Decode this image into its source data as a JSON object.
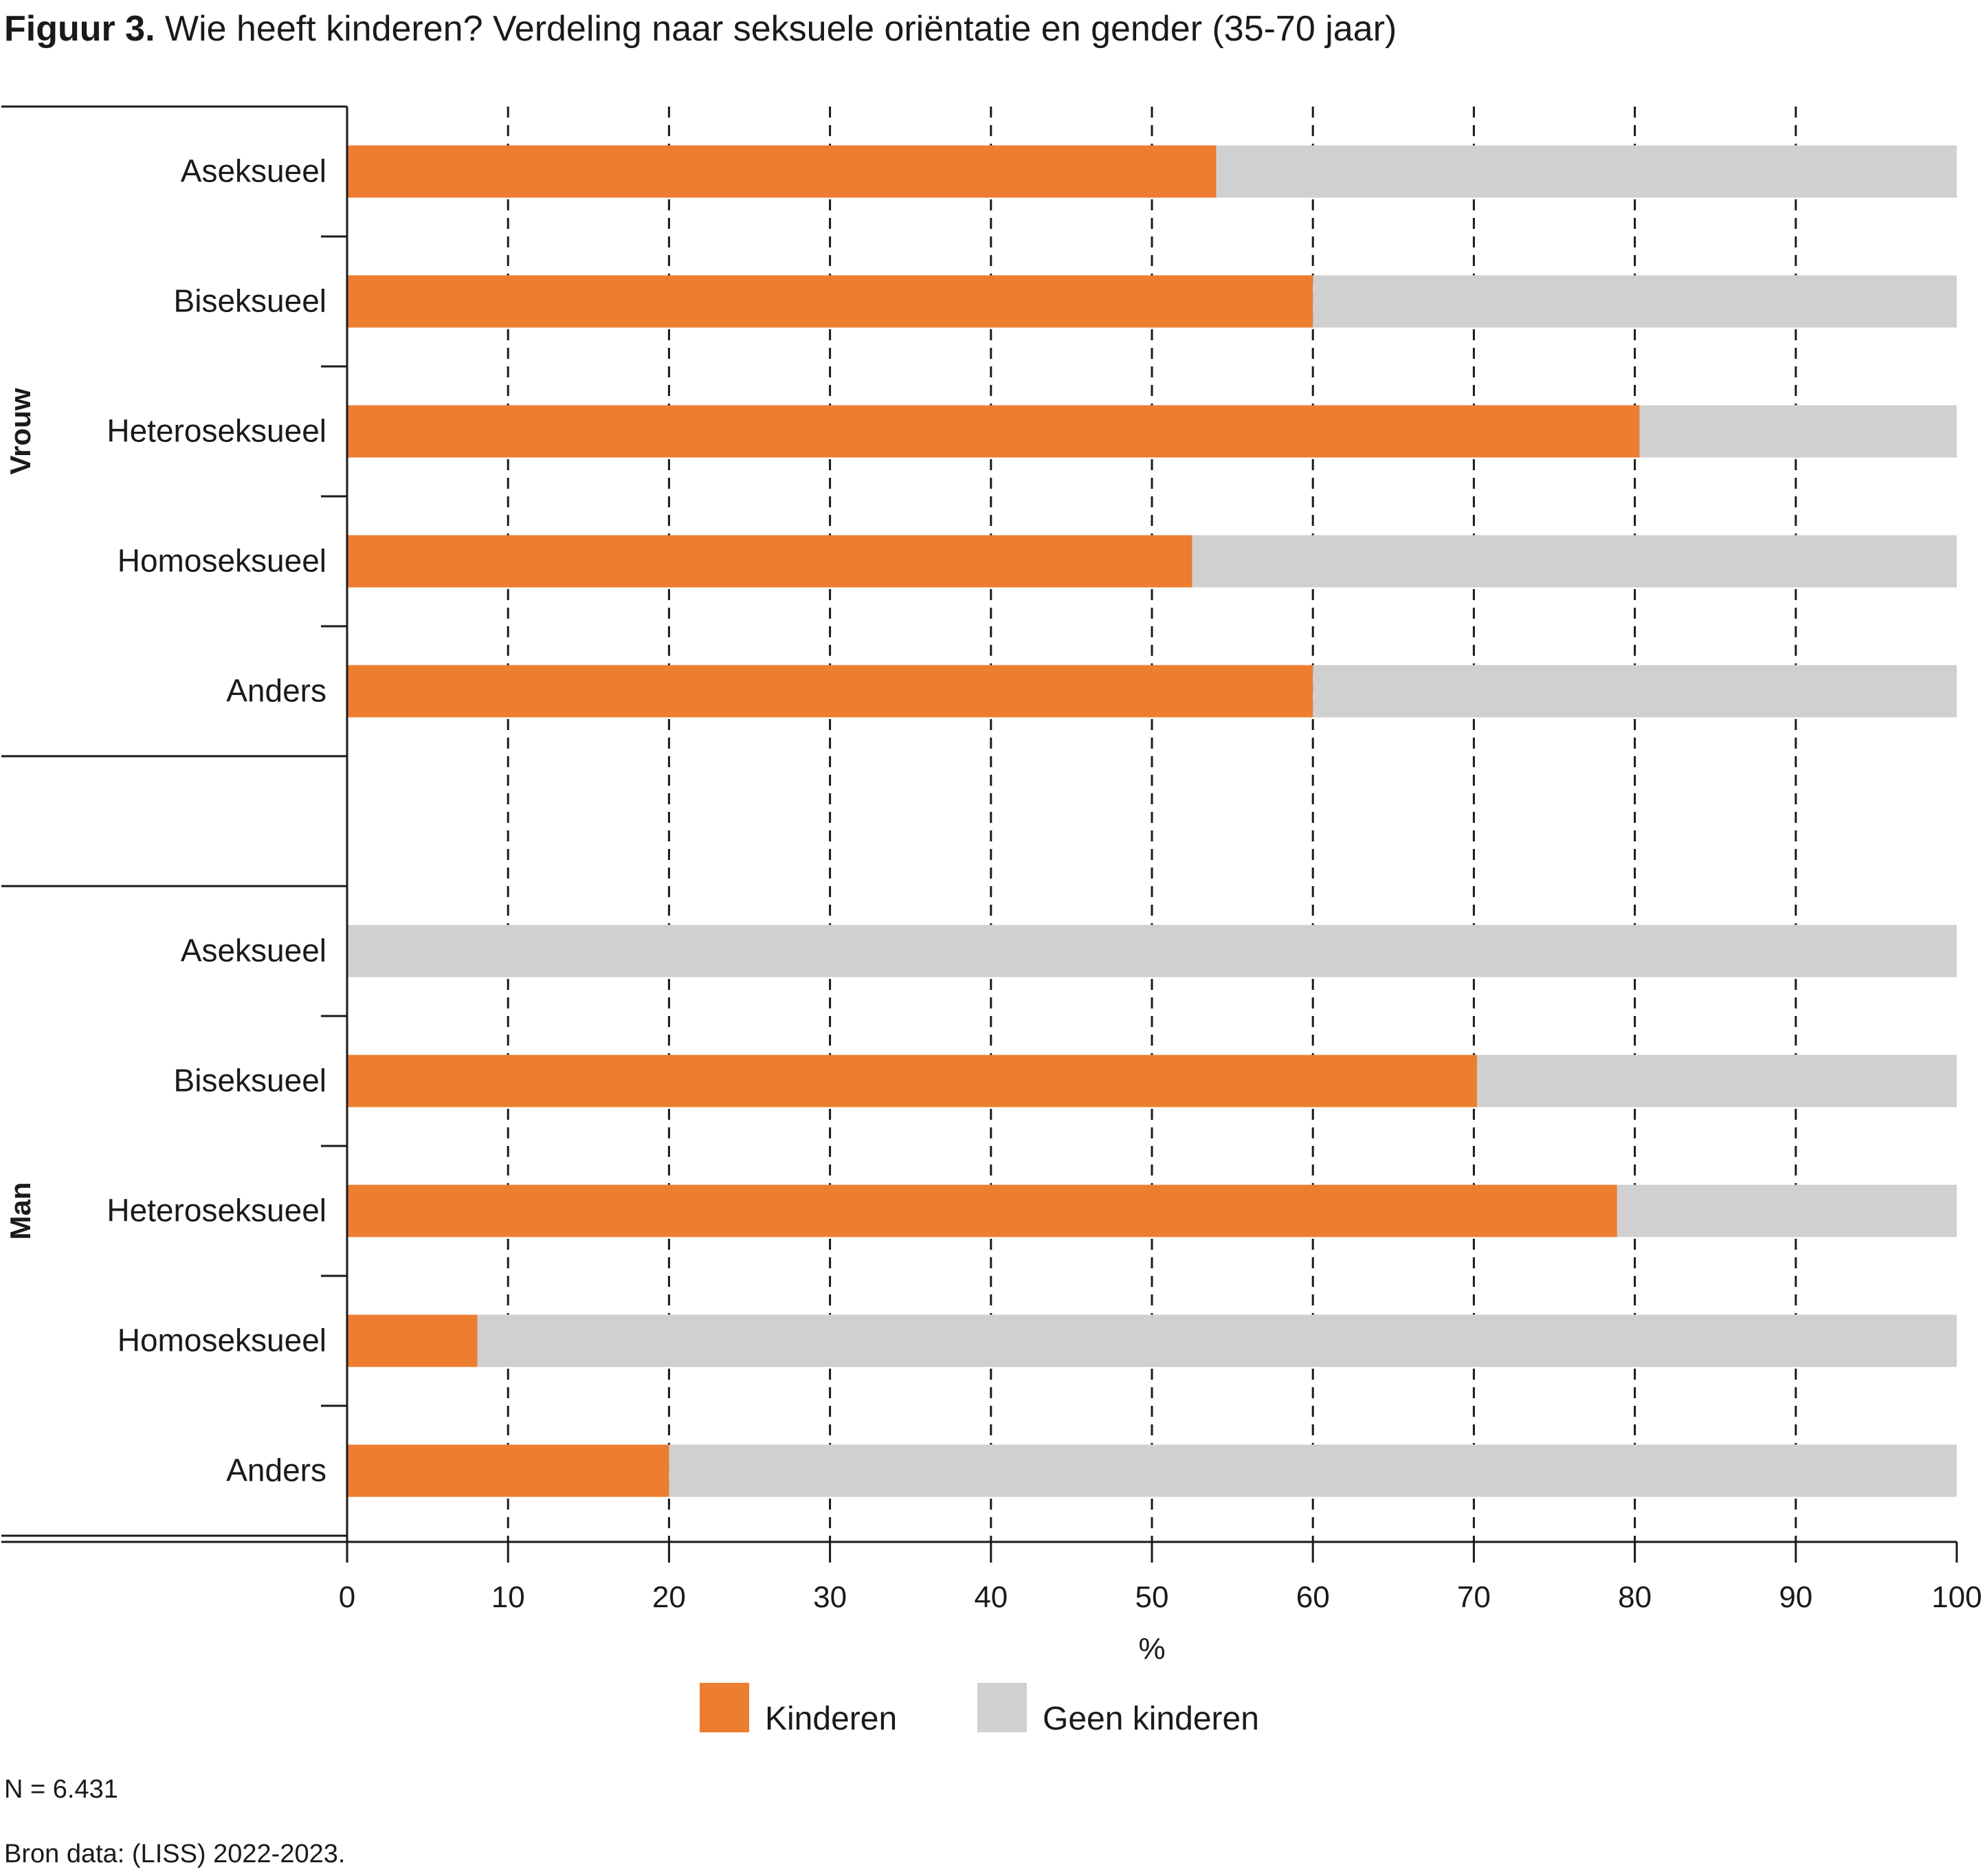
{
  "figure": {
    "label": "Figuur 3.",
    "title": "Wie heeft kinderen? Verdeling naar seksuele oriëntatie en gender (35-70 jaar)"
  },
  "footnotes": {
    "n": "N = 6.431",
    "source": "Bron data: (LISS) 2022-2023."
  },
  "colors": {
    "kinderen": "#ED7D31",
    "geen_kinderen": "#D0D0D0"
  },
  "chart_data": {
    "type": "bar",
    "orientation": "horizontal",
    "stacked": true,
    "title": "Wie heeft kinderen? Verdeling naar seksuele oriëntatie en gender (35-70 jaar)",
    "xlabel": "%",
    "ylabel": "",
    "xlim": [
      0,
      100
    ],
    "xticks": [
      0,
      10,
      20,
      30,
      40,
      50,
      60,
      70,
      80,
      90,
      100
    ],
    "grid": "dashed vertical",
    "legend_position": "bottom-center",
    "legend": [
      "Kinderen",
      "Geen kinderen"
    ],
    "groups": [
      {
        "name": "Vrouw",
        "categories": [
          "Aseksueel",
          "Biseksueel",
          "Heteroseksueel",
          "Homoseksueel",
          "Anders"
        ],
        "series": [
          {
            "name": "Kinderen",
            "values": [
              54,
              60,
              80.3,
              52.5,
              60
            ]
          },
          {
            "name": "Geen kinderen",
            "values": [
              46,
              40,
              19.7,
              47.5,
              40
            ]
          }
        ]
      },
      {
        "name": "Man",
        "categories": [
          "Aseksueel",
          "Biseksueel",
          "Heteroseksueel",
          "Homoseksueel",
          "Anders"
        ],
        "series": [
          {
            "name": "Kinderen",
            "values": [
              0,
              70.2,
              78.9,
              8.1,
              20
            ]
          },
          {
            "name": "Geen kinderen",
            "values": [
              100,
              29.8,
              21.1,
              91.9,
              80
            ]
          }
        ]
      }
    ]
  }
}
